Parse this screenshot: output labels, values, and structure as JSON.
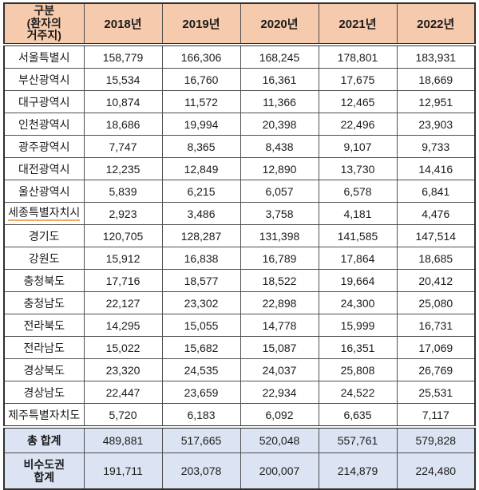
{
  "table": {
    "corner_header": "구분\n(환자의\n거주지)",
    "year_headers": [
      "2018년",
      "2019년",
      "2020년",
      "2021년",
      "2022년"
    ],
    "rows": [
      {
        "region": "서울특별시",
        "values": [
          "158,779",
          "166,306",
          "168,245",
          "178,801",
          "183,931"
        ]
      },
      {
        "region": "부산광역시",
        "values": [
          "15,534",
          "16,760",
          "16,361",
          "17,675",
          "18,669"
        ]
      },
      {
        "region": "대구광역시",
        "values": [
          "10,874",
          "11,572",
          "11,366",
          "12,465",
          "12,951"
        ]
      },
      {
        "region": "인천광역시",
        "values": [
          "18,686",
          "19,994",
          "20,398",
          "22,496",
          "23,903"
        ]
      },
      {
        "region": "광주광역시",
        "values": [
          "7,747",
          "8,365",
          "8,438",
          "9,107",
          "9,733"
        ]
      },
      {
        "region": "대전광역시",
        "values": [
          "12,235",
          "12,849",
          "12,890",
          "13,730",
          "14,416"
        ]
      },
      {
        "region": "울산광역시",
        "values": [
          "5,839",
          "6,215",
          "6,057",
          "6,578",
          "6,841"
        ]
      },
      {
        "region": "세종특별자치시",
        "values": [
          "2,923",
          "3,486",
          "3,758",
          "4,181",
          "4,476"
        ]
      },
      {
        "region": "경기도",
        "values": [
          "120,705",
          "128,287",
          "131,398",
          "141,585",
          "147,514"
        ]
      },
      {
        "region": "강원도",
        "values": [
          "15,912",
          "16,838",
          "16,789",
          "17,864",
          "18,685"
        ]
      },
      {
        "region": "충청북도",
        "values": [
          "17,716",
          "18,577",
          "18,522",
          "19,664",
          "20,412"
        ]
      },
      {
        "region": "충청남도",
        "values": [
          "22,127",
          "23,302",
          "22,898",
          "24,300",
          "25,080"
        ]
      },
      {
        "region": "전라북도",
        "values": [
          "14,295",
          "15,055",
          "14,778",
          "15,999",
          "16,731"
        ]
      },
      {
        "region": "전라남도",
        "values": [
          "15,022",
          "15,682",
          "15,087",
          "16,351",
          "17,069"
        ]
      },
      {
        "region": "경상북도",
        "values": [
          "23,320",
          "24,535",
          "24,037",
          "25,808",
          "26,769"
        ]
      },
      {
        "region": "경상남도",
        "values": [
          "22,447",
          "23,659",
          "22,934",
          "24,522",
          "25,531"
        ]
      },
      {
        "region": "제주특별자치도",
        "values": [
          "5,720",
          "6,183",
          "6,092",
          "6,635",
          "7,117"
        ]
      }
    ],
    "totals": [
      {
        "label": "총  합계",
        "values": [
          "489,881",
          "517,665",
          "520,048",
          "557,761",
          "579,828"
        ]
      },
      {
        "label": "비수도권\n합계",
        "values": [
          "191,711",
          "203,078",
          "200,007",
          "214,879",
          "224,480"
        ]
      }
    ],
    "colors": {
      "header_bg": "#F6CAAC",
      "totals_bg": "#DCE3F2",
      "border": "#2f2f2f",
      "sejong_underline": "#f0a868"
    }
  }
}
